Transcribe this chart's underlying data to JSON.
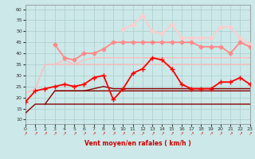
{
  "xlabel": "Vent moyen/en rafales ( km/h )",
  "xlim": [
    0,
    23
  ],
  "ylim": [
    8,
    62
  ],
  "yticks": [
    10,
    15,
    20,
    25,
    30,
    35,
    40,
    45,
    50,
    55,
    60
  ],
  "xticks": [
    0,
    1,
    2,
    3,
    4,
    5,
    6,
    7,
    8,
    9,
    10,
    11,
    12,
    13,
    14,
    15,
    16,
    17,
    18,
    19,
    20,
    21,
    22,
    23
  ],
  "background_color": "#cce8e8",
  "grid_color": "#aacccc",
  "series": [
    {
      "x": [
        0,
        1,
        2,
        3,
        4,
        5,
        6,
        7,
        8,
        9,
        10,
        11,
        12,
        13,
        14,
        15,
        16,
        17,
        18,
        19,
        20,
        21,
        22,
        23
      ],
      "y": [
        13,
        17,
        17,
        17,
        17,
        17,
        17,
        17,
        17,
        17,
        17,
        17,
        17,
        17,
        17,
        17,
        17,
        17,
        17,
        17,
        17,
        17,
        17,
        17
      ],
      "color": "#880000",
      "linewidth": 1.0,
      "marker": null,
      "markersize": 0,
      "alpha": 1.0,
      "zorder": 5
    },
    {
      "x": [
        2,
        3,
        4,
        5,
        6,
        7,
        8,
        9,
        10,
        11,
        12,
        13,
        14,
        15,
        16,
        17,
        18,
        19,
        20,
        21,
        22,
        23
      ],
      "y": [
        17,
        23,
        23,
        23,
        23,
        23,
        23,
        23,
        23,
        23,
        23,
        23,
        23,
        23,
        23,
        23,
        23,
        23,
        23,
        23,
        23,
        23
      ],
      "color": "#880000",
      "linewidth": 1.0,
      "marker": null,
      "markersize": 0,
      "alpha": 1.0,
      "zorder": 5
    },
    {
      "x": [
        3,
        4,
        5,
        6,
        7,
        8,
        9,
        10,
        11,
        12,
        13,
        14,
        15,
        16,
        17,
        18,
        19,
        20,
        21,
        22,
        23
      ],
      "y": [
        23,
        23,
        23,
        23,
        24,
        25,
        24,
        24,
        24,
        24,
        24,
        24,
        24,
        24,
        24,
        24,
        24,
        24,
        24,
        24,
        24
      ],
      "color": "#880000",
      "linewidth": 1.0,
      "marker": null,
      "markersize": 0,
      "alpha": 1.0,
      "zorder": 4
    },
    {
      "x": [
        0,
        1,
        2,
        3,
        4,
        5,
        6,
        7,
        8,
        9,
        10,
        11,
        12,
        13,
        14,
        15,
        16,
        17,
        18,
        19,
        20,
        21,
        22,
        23
      ],
      "y": [
        18,
        23,
        24,
        25,
        26,
        25,
        26,
        29,
        30,
        19,
        24,
        31,
        33,
        38,
        37,
        33,
        26,
        24,
        24,
        24,
        27,
        27,
        29,
        26
      ],
      "color": "#ff0000",
      "linewidth": 1.3,
      "marker": "+",
      "markersize": 4,
      "alpha": 1.0,
      "zorder": 7
    },
    {
      "x": [
        0,
        1,
        2,
        3,
        4,
        5,
        6,
        7,
        8,
        9,
        10,
        11,
        12,
        13,
        14,
        15,
        16,
        17,
        18,
        19,
        20,
        21,
        22,
        23
      ],
      "y": [
        22,
        24,
        35,
        35,
        35,
        35,
        35,
        35,
        35,
        35,
        35,
        35,
        35,
        35,
        35,
        35,
        35,
        35,
        35,
        35,
        35,
        35,
        35,
        35
      ],
      "color": "#ffbbbb",
      "linewidth": 1.0,
      "marker": null,
      "markersize": 0,
      "alpha": 1.0,
      "zorder": 2
    },
    {
      "x": [
        3,
        4,
        5,
        6,
        7,
        8,
        9,
        10,
        11,
        12,
        13,
        14,
        15,
        16,
        17,
        18,
        19,
        20,
        21,
        22,
        23
      ],
      "y": [
        35,
        37,
        35,
        37,
        38,
        38,
        38,
        38,
        38,
        38,
        38,
        38,
        38,
        38,
        38,
        38,
        38,
        38,
        38,
        38,
        38
      ],
      "color": "#ffbbbb",
      "linewidth": 1.0,
      "marker": null,
      "markersize": 0,
      "alpha": 1.0,
      "zorder": 2
    },
    {
      "x": [
        3,
        4,
        5,
        6,
        7,
        8,
        9,
        10,
        11,
        12,
        13,
        14,
        15,
        16,
        17,
        18,
        19,
        20,
        21,
        22,
        23
      ],
      "y": [
        44,
        38,
        37,
        40,
        40,
        42,
        45,
        45,
        45,
        45,
        45,
        45,
        45,
        45,
        45,
        43,
        43,
        43,
        40,
        45,
        43
      ],
      "color": "#ff8888",
      "linewidth": 1.3,
      "marker": "D",
      "markersize": 2.5,
      "alpha": 1.0,
      "zorder": 5
    },
    {
      "x": [
        10,
        11,
        12,
        13,
        14,
        15,
        16,
        17,
        18,
        19,
        20,
        21,
        22,
        23
      ],
      "y": [
        51,
        53,
        57,
        50,
        49,
        53,
        47,
        47,
        47,
        47,
        52,
        52,
        47,
        44
      ],
      "color": "#ffcccc",
      "linewidth": 1.3,
      "marker": "D",
      "markersize": 2.5,
      "alpha": 1.0,
      "zorder": 4
    }
  ]
}
